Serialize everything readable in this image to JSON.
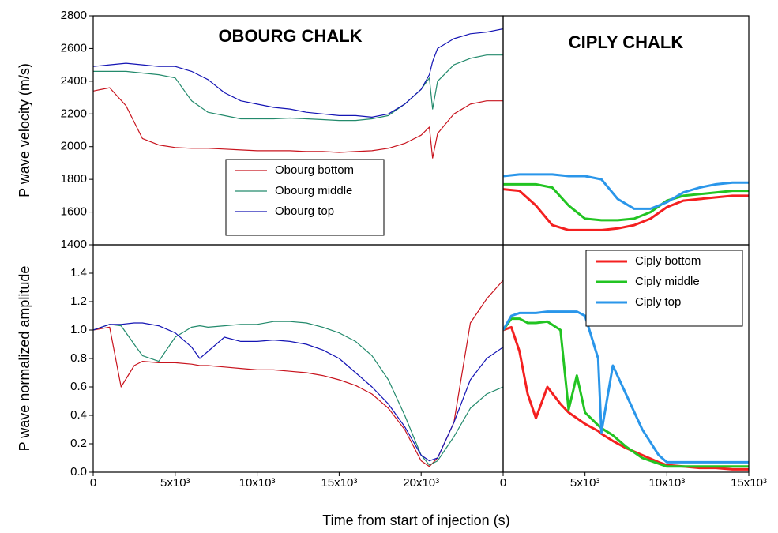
{
  "xlabel": "Time from start of injection (s)",
  "chart_data": [
    {
      "type": "line",
      "title": "OBOURG CHALK",
      "ylabel": "P wave velocity (m/s)",
      "x": [
        0,
        1000,
        2000,
        3000,
        4000,
        5000,
        6000,
        7000,
        8000,
        9000,
        10000,
        11000,
        12000,
        13000,
        14000,
        15000,
        16000,
        17000,
        18000,
        19000,
        20000,
        20500,
        20700,
        21000,
        22000,
        23000,
        24000,
        25000
      ],
      "series": [
        {
          "name": "Obourg bottom",
          "color": "#c8141e",
          "values": [
            2340,
            2360,
            2250,
            2050,
            2010,
            1995,
            1990,
            1990,
            1985,
            1980,
            1975,
            1975,
            1975,
            1970,
            1970,
            1965,
            1970,
            1975,
            1990,
            2020,
            2070,
            2120,
            1930,
            2080,
            2200,
            2260,
            2280,
            2280
          ]
        },
        {
          "name": "Obourg middle",
          "color": "#238a6c",
          "values": [
            2460,
            2460,
            2460,
            2450,
            2440,
            2420,
            2280,
            2210,
            2190,
            2170,
            2170,
            2170,
            2175,
            2170,
            2165,
            2160,
            2160,
            2170,
            2190,
            2260,
            2350,
            2420,
            2230,
            2400,
            2500,
            2540,
            2560,
            2560
          ]
        },
        {
          "name": "Obourg top",
          "color": "#1414b4",
          "values": [
            2490,
            2500,
            2510,
            2500,
            2490,
            2490,
            2460,
            2410,
            2330,
            2280,
            2260,
            2240,
            2230,
            2210,
            2200,
            2190,
            2190,
            2180,
            2200,
            2260,
            2350,
            2440,
            2520,
            2600,
            2660,
            2690,
            2700,
            2720
          ]
        }
      ],
      "xlim": [
        0,
        25000
      ],
      "ylim": [
        1400,
        2800
      ],
      "yticks": [
        1400,
        1600,
        1800,
        2000,
        2200,
        2400,
        2600,
        2800
      ],
      "legend": "lower center",
      "line_width": 1.2
    },
    {
      "type": "line",
      "title": "CIPLY CHALK",
      "x": [
        0,
        1000,
        2000,
        3000,
        4000,
        5000,
        6000,
        7000,
        8000,
        9000,
        10000,
        11000,
        12000,
        13000,
        14000,
        15000
      ],
      "series": [
        {
          "name": "Ciply bottom",
          "color": "#f42020",
          "values": [
            1740,
            1730,
            1640,
            1520,
            1490,
            1490,
            1490,
            1500,
            1520,
            1560,
            1630,
            1670,
            1680,
            1690,
            1700,
            1700
          ]
        },
        {
          "name": "Ciply middle",
          "color": "#22c422",
          "values": [
            1770,
            1770,
            1770,
            1750,
            1640,
            1560,
            1550,
            1550,
            1560,
            1600,
            1670,
            1700,
            1710,
            1720,
            1730,
            1730
          ]
        },
        {
          "name": "Ciply top",
          "color": "#2a96ea",
          "values": [
            1820,
            1830,
            1830,
            1830,
            1820,
            1820,
            1800,
            1680,
            1620,
            1620,
            1660,
            1720,
            1750,
            1770,
            1780,
            1780
          ]
        }
      ],
      "xlim": [
        0,
        15000
      ],
      "ylim": [
        1400,
        2800
      ],
      "line_width": 3
    },
    {
      "type": "line",
      "ylabel": "P wave normalized amplitude",
      "x": [
        0,
        1000,
        1700,
        2500,
        3000,
        4000,
        5000,
        6000,
        6500,
        7000,
        8000,
        9000,
        10000,
        11000,
        12000,
        13000,
        14000,
        15000,
        16000,
        17000,
        18000,
        19000,
        20000,
        20500,
        21000,
        22000,
        23000,
        24000,
        25000
      ],
      "series": [
        {
          "name": "Obourg bottom",
          "color": "#c8141e",
          "values": [
            1.0,
            1.02,
            0.6,
            0.75,
            0.78,
            0.77,
            0.77,
            0.76,
            0.75,
            0.75,
            0.74,
            0.73,
            0.72,
            0.72,
            0.71,
            0.7,
            0.68,
            0.65,
            0.61,
            0.55,
            0.45,
            0.3,
            0.08,
            0.04,
            0.1,
            0.35,
            1.05,
            1.22,
            1.35
          ]
        },
        {
          "name": "Obourg middle",
          "color": "#238a6c",
          "values": [
            1.0,
            1.04,
            1.03,
            0.9,
            0.82,
            0.78,
            0.95,
            1.02,
            1.03,
            1.02,
            1.03,
            1.04,
            1.04,
            1.06,
            1.06,
            1.05,
            1.02,
            0.98,
            0.92,
            0.82,
            0.65,
            0.4,
            0.12,
            0.05,
            0.08,
            0.25,
            0.45,
            0.55,
            0.6
          ]
        },
        {
          "name": "Obourg top",
          "color": "#1414b4",
          "values": [
            1.0,
            1.04,
            1.04,
            1.05,
            1.05,
            1.03,
            0.98,
            0.88,
            0.8,
            0.85,
            0.95,
            0.92,
            0.92,
            0.93,
            0.92,
            0.9,
            0.86,
            0.8,
            0.7,
            0.6,
            0.48,
            0.32,
            0.12,
            0.08,
            0.1,
            0.35,
            0.65,
            0.8,
            0.88
          ]
        }
      ],
      "xlim": [
        0,
        25000
      ],
      "ylim": [
        0,
        1.6
      ],
      "xticks": [
        0,
        {
          "value": 5000,
          "label": "5x10³"
        },
        {
          "value": 10000,
          "label": "10x10³"
        },
        {
          "value": 15000,
          "label": "15x10³"
        },
        {
          "value": 20000,
          "label": "20x10³"
        }
      ],
      "yticks": [
        {
          "value": 0,
          "label": "0.0"
        },
        {
          "value": 0.2,
          "label": "0.2"
        },
        {
          "value": 0.4,
          "label": "0.4"
        },
        {
          "value": 0.6,
          "label": "0.6"
        },
        {
          "value": 0.8,
          "label": "0.8"
        },
        {
          "value": 1.0,
          "label": "1.0"
        },
        {
          "value": 1.2,
          "label": "1.2"
        },
        {
          "value": 1.4,
          "label": "1.4"
        }
      ],
      "line_width": 1.2
    },
    {
      "type": "line",
      "x": [
        0,
        500,
        1000,
        1500,
        2000,
        2700,
        3500,
        4000,
        4500,
        5000,
        5800,
        6000,
        6700,
        7500,
        8500,
        9500,
        10000,
        11000,
        12000,
        13000,
        14000,
        15000
      ],
      "series": [
        {
          "name": "Ciply bottom",
          "color": "#f42020",
          "values": [
            1.0,
            1.02,
            0.85,
            0.55,
            0.38,
            0.6,
            0.48,
            0.42,
            0.38,
            0.34,
            0.29,
            0.27,
            0.22,
            0.17,
            0.12,
            0.07,
            0.05,
            0.04,
            0.03,
            0.03,
            0.02,
            0.02
          ]
        },
        {
          "name": "Ciply middle",
          "color": "#22c422",
          "values": [
            1.0,
            1.08,
            1.08,
            1.05,
            1.05,
            1.06,
            1.0,
            0.44,
            0.68,
            0.42,
            0.33,
            0.31,
            0.26,
            0.18,
            0.1,
            0.06,
            0.04,
            0.04,
            0.04,
            0.04,
            0.04,
            0.04
          ]
        },
        {
          "name": "Ciply top",
          "color": "#2a96ea",
          "values": [
            1.0,
            1.1,
            1.12,
            1.12,
            1.12,
            1.13,
            1.13,
            1.13,
            1.13,
            1.1,
            0.8,
            0.28,
            0.75,
            0.55,
            0.3,
            0.12,
            0.07,
            0.07,
            0.07,
            0.07,
            0.07,
            0.07
          ]
        }
      ],
      "xlim": [
        0,
        15000
      ],
      "ylim": [
        0,
        1.6
      ],
      "xticks": [
        0,
        {
          "value": 5000,
          "label": "5x10³"
        },
        {
          "value": 10000,
          "label": "10x10³"
        },
        {
          "value": 15000,
          "label": "15x10³"
        }
      ],
      "legend": "upper right",
      "line_width": 3
    }
  ]
}
